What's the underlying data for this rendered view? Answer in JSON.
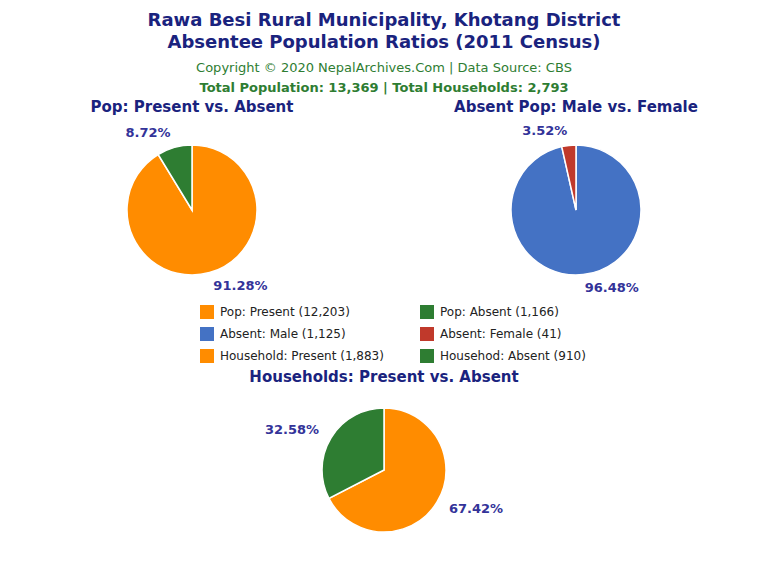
{
  "title": [
    "Rawa Besi Rural Municipality, Khotang District",
    "Absentee Population Ratios (2011 Census)"
  ],
  "annotations": [
    "Copyright © 2020 NepalArchives.Com | Data Source: CBS",
    "Total Population: 13,369 | Total Households: 2,793"
  ],
  "legend": "center",
  "chart_data": [
    {
      "type": "pie",
      "title": "Pop: Present vs. Absent",
      "categories": [
        "Pop: Present (12,203)",
        "Pop: Absent (1,166)"
      ],
      "values": [
        91.28,
        8.72
      ],
      "value_labels": [
        "91.28%",
        "8.72%"
      ],
      "colors": [
        "#FF8C00",
        "#2E7D32"
      ],
      "data_labels": true
    },
    {
      "type": "pie",
      "title": "Absent Pop: Male vs. Female",
      "categories": [
        "Absent: Male (1,125)",
        "Absent: Female (41)"
      ],
      "values": [
        96.48,
        3.52
      ],
      "value_labels": [
        "96.48%",
        "3.52%"
      ],
      "colors": [
        "#4472C4",
        "#C0392B"
      ],
      "data_labels": true
    },
    {
      "type": "pie",
      "title": "Households: Present vs. Absent",
      "categories": [
        "Household: Present (1,883)",
        "Househod: Absent (910)"
      ],
      "values": [
        67.42,
        32.58
      ],
      "value_labels": [
        "67.42%",
        "32.58%"
      ],
      "colors": [
        "#FF8C00",
        "#2E7D32"
      ],
      "data_labels": true
    }
  ]
}
